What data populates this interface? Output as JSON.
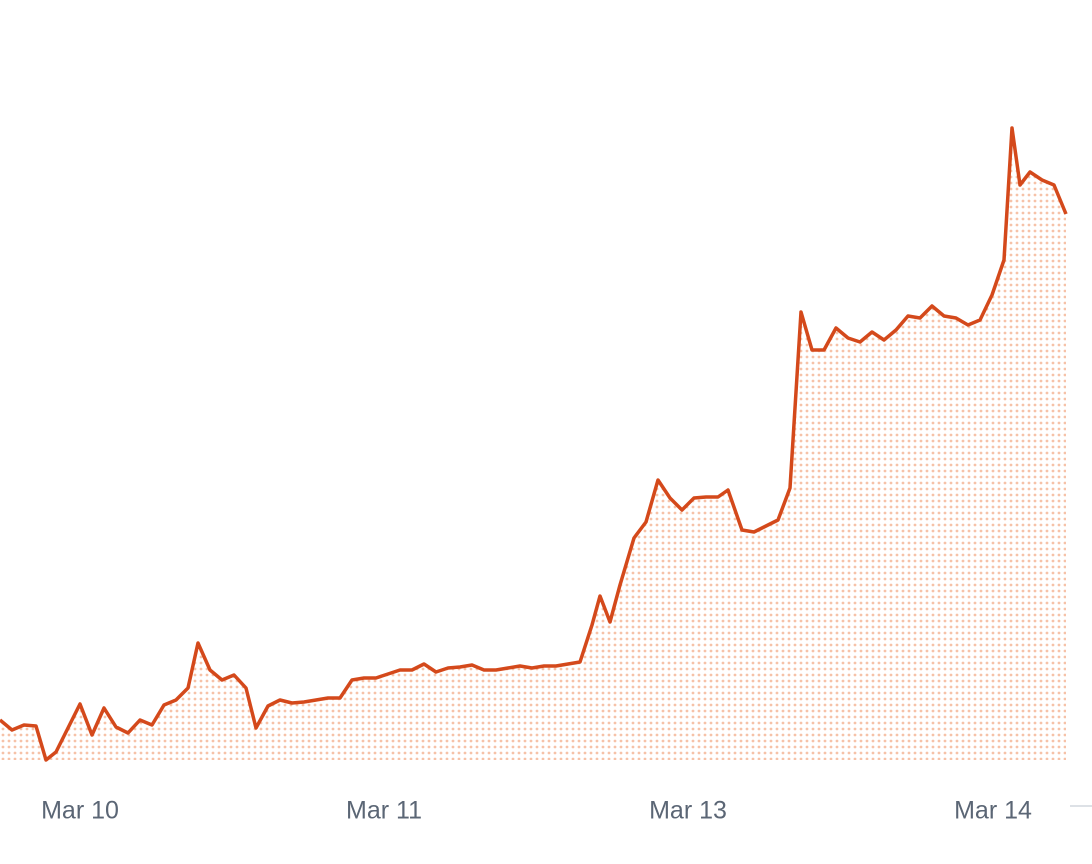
{
  "chart_data": {
    "type": "line",
    "x": [
      0,
      12,
      24,
      36,
      46,
      56,
      68,
      80,
      92,
      104,
      116,
      128,
      140,
      152,
      164,
      176,
      188,
      198,
      210,
      222,
      234,
      246,
      256,
      268,
      280,
      292,
      304,
      316,
      328,
      340,
      352,
      364,
      376,
      388,
      400,
      412,
      424,
      436,
      448,
      460,
      472,
      484,
      496,
      508,
      520,
      532,
      544,
      556,
      568,
      580,
      592,
      600,
      610,
      620,
      634,
      646,
      658,
      670,
      682,
      694,
      706,
      718,
      728,
      742,
      754,
      766,
      778,
      790,
      801,
      812,
      824,
      836,
      848,
      860,
      872,
      884,
      896,
      908,
      920,
      932,
      944,
      956,
      968,
      980,
      992,
      1004,
      1012,
      1020,
      1030,
      1042,
      1054,
      1066
    ],
    "series": [
      {
        "color": "#d4491b",
        "fill": "#f6c2a8",
        "values": [
          40,
          30,
          35,
          34,
          0,
          8,
          32,
          56,
          25,
          52,
          33,
          27,
          40,
          35,
          55,
          60,
          72,
          117,
          90,
          80,
          85,
          72,
          32,
          54,
          60,
          57,
          58,
          60,
          62,
          62,
          80,
          82,
          82,
          86,
          90,
          90,
          96,
          88,
          92,
          93,
          95,
          90,
          90,
          92,
          94,
          92,
          94,
          94,
          96,
          98,
          135,
          164,
          138,
          175,
          222,
          238,
          280,
          262,
          250,
          262,
          263,
          263,
          270,
          230,
          228,
          234,
          240,
          272,
          448,
          410,
          410,
          432,
          422,
          418,
          428,
          420,
          430,
          444,
          442,
          454,
          444,
          442,
          435,
          440,
          465,
          500,
          632,
          575,
          588,
          580,
          575,
          546
        ]
      }
    ],
    "xlim": [
      0,
      1066
    ],
    "xticks": [
      {
        "value": 80,
        "label": "Mar 10"
      },
      {
        "value": 384,
        "label": "Mar 11"
      },
      {
        "value": 688,
        "label": "Mar 13"
      },
      {
        "value": 993,
        "label": "Mar 14"
      }
    ],
    "ylim": [
      0,
      760
    ]
  }
}
